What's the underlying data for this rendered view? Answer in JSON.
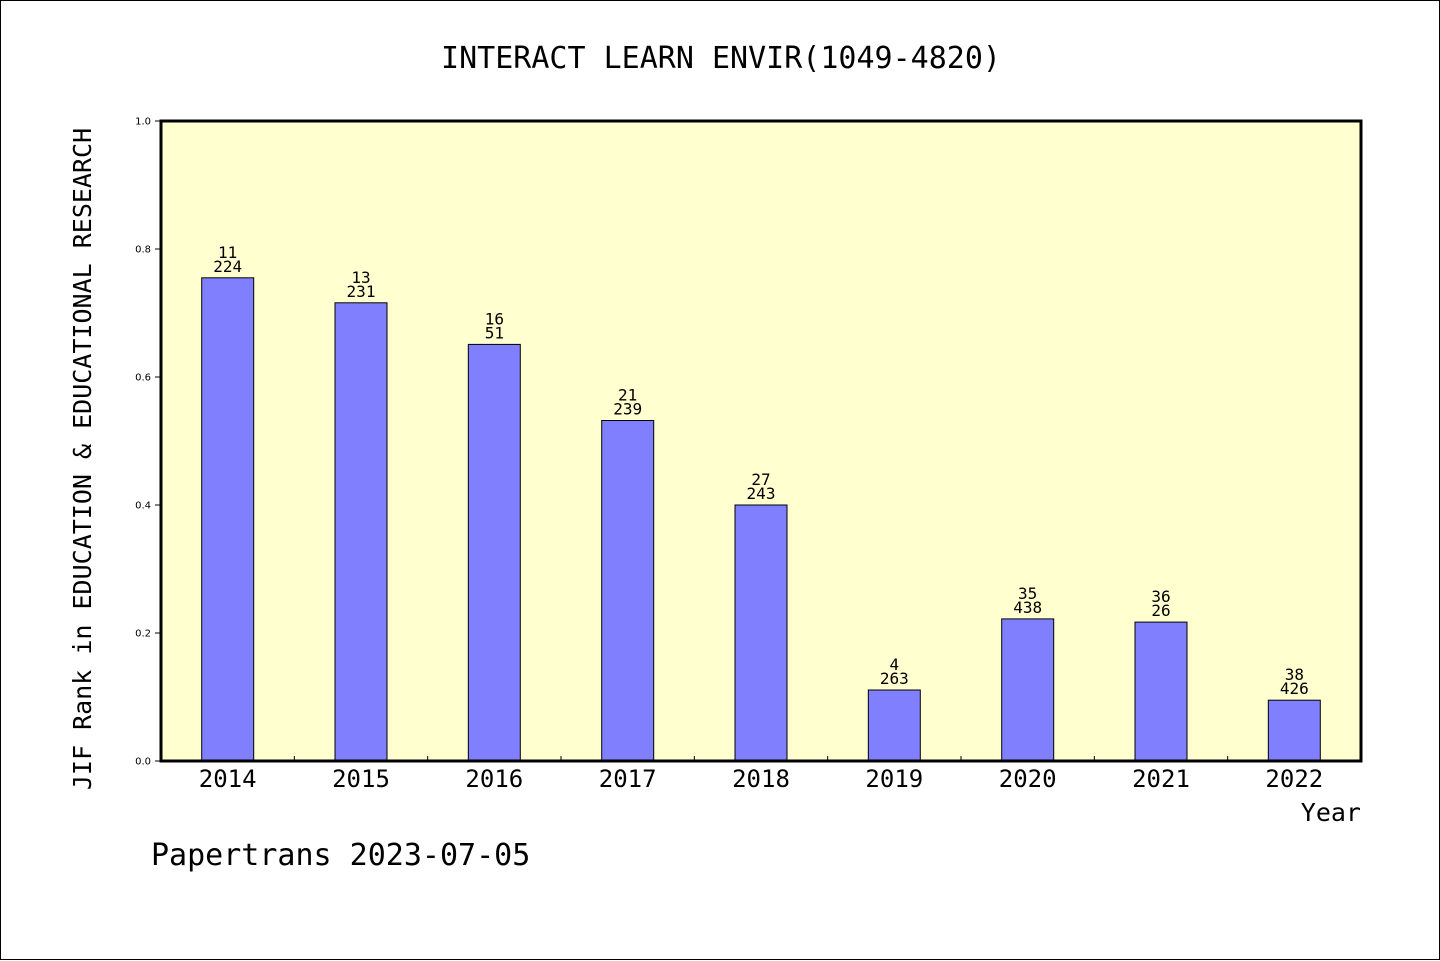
{
  "chart_data": {
    "type": "bar",
    "title": "INTERACT LEARN ENVIR(1049-4820)",
    "xlabel": "Year",
    "ylabel": "JIF Rank in EDUCATION & EDUCATIONAL RESEARCH",
    "ylim": [
      0,
      1.0
    ],
    "yticks": [
      "0.0",
      "0.2",
      "0.4",
      "0.6",
      "0.8",
      "1.0"
    ],
    "grid": false,
    "categories": [
      "2014",
      "2015",
      "2016",
      "2017",
      "2018",
      "2019",
      "2020",
      "2021",
      "2022"
    ],
    "values": [
      0.755,
      0.716,
      0.651,
      0.532,
      0.4,
      0.111,
      0.222,
      0.217,
      0.095
    ],
    "labels": [
      [
        "11",
        "224"
      ],
      [
        "13",
        "231"
      ],
      [
        "16",
        "51"
      ],
      [
        "21",
        "239"
      ],
      [
        "27",
        "243"
      ],
      [
        "4",
        "263"
      ],
      [
        "35",
        "438"
      ],
      [
        "36",
        "26"
      ],
      [
        "38",
        "426"
      ]
    ],
    "colors": {
      "bar": "#8080ff",
      "plot_background": "#ffffd0",
      "axis": "#000000"
    }
  },
  "footer": {
    "text": "Papertrans 2023-07-05"
  }
}
